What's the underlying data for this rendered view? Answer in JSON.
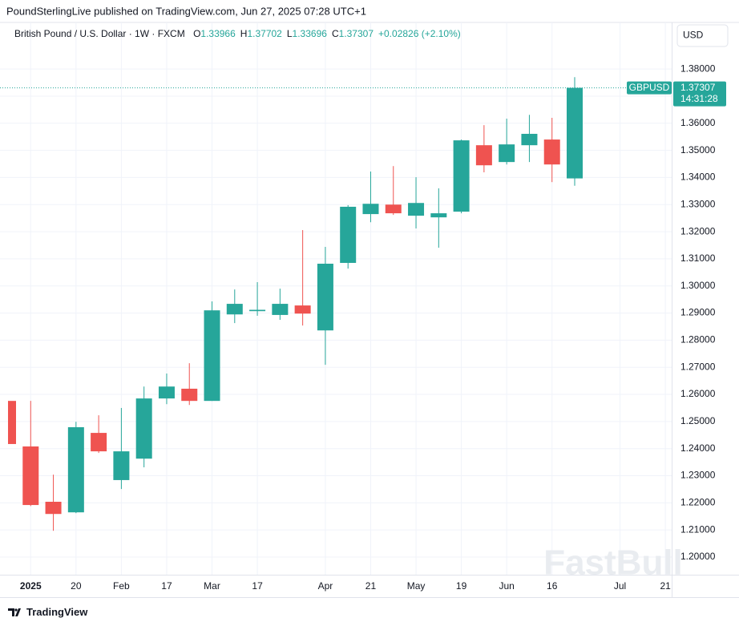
{
  "header": {
    "publisher": "PoundSterlingLive published on TradingView.com, Jun 27, 2025 07:28 UTC+1"
  },
  "footer": {
    "brand": "TradingView"
  },
  "watermark": "FastBull",
  "chart_data": {
    "type": "candlestick",
    "symbol_title": "British Pound / U.S. Dollar · 1W · FXCM",
    "ohlc_legend": [
      {
        "label": "O",
        "value": "1.33966"
      },
      {
        "label": "H",
        "value": "1.37702"
      },
      {
        "label": "L",
        "value": "1.33696"
      },
      {
        "label": "C",
        "value": "1.37307"
      }
    ],
    "change": "+0.02826 (+2.10%)",
    "currency": "USD",
    "price_tag": {
      "symbol": "GBPUSD",
      "price": "1.37307",
      "countdown": "14:31:28"
    },
    "categories": [
      null,
      "2025",
      null,
      "20",
      null,
      "Feb",
      null,
      "17",
      null,
      "Mar",
      null,
      "17",
      null,
      null,
      "Apr",
      null,
      "21",
      null,
      "May",
      null,
      "19",
      null,
      "Jun",
      null,
      "16",
      null,
      null,
      "Jul",
      null,
      "21"
    ],
    "open": [
      1.2576,
      1.2408,
      1.2204,
      1.2165,
      1.2458,
      1.2284,
      1.2363,
      1.2585,
      1.2621,
      1.2576,
      1.2895,
      1.2907,
      1.2893,
      1.2928,
      1.2836,
      1.3085,
      1.3265,
      1.33,
      1.3259,
      1.3253,
      1.3274,
      1.3519,
      1.3457,
      1.3519,
      1.354,
      1.33966,
      null,
      null,
      null,
      null
    ],
    "high": [
      1.2576,
      1.2576,
      1.2304,
      1.2499,
      1.2523,
      1.255,
      1.2629,
      1.2677,
      1.2715,
      1.2943,
      1.2987,
      1.3014,
      1.299,
      1.3206,
      1.3144,
      1.3298,
      1.3422,
      1.3442,
      1.3401,
      1.336,
      1.354,
      1.3593,
      1.3617,
      1.3631,
      1.362,
      1.37702,
      null,
      null,
      null,
      null
    ],
    "low": [
      1.2417,
      1.2188,
      1.2097,
      1.2162,
      1.2384,
      1.2251,
      1.2331,
      1.2564,
      1.2561,
      1.2576,
      1.2863,
      1.289,
      1.2875,
      1.2854,
      1.2709,
      1.3064,
      1.3235,
      1.3262,
      1.3212,
      1.3141,
      1.3268,
      1.3419,
      1.3448,
      1.3457,
      1.3383,
      1.33696,
      null,
      null,
      null,
      null
    ],
    "close": [
      1.2417,
      1.2192,
      1.2159,
      1.2479,
      1.239,
      1.239,
      1.2585,
      1.2629,
      1.2576,
      1.291,
      1.2934,
      1.2912,
      1.2934,
      1.2898,
      1.3082,
      1.3292,
      1.3303,
      1.3268,
      1.3306,
      1.3268,
      1.3537,
      1.3445,
      1.3522,
      1.3561,
      1.3448,
      1.37307,
      null,
      null,
      null,
      null
    ],
    "up_color": "#26a69a",
    "down_color": "#ef5350",
    "ylim": [
      1.1935,
      1.3892
    ],
    "yticks": [
      {
        "value": 1.2,
        "label": "1.20000"
      },
      {
        "value": 1.21,
        "label": "1.21000"
      },
      {
        "value": 1.22,
        "label": "1.22000"
      },
      {
        "value": 1.23,
        "label": "1.23000"
      },
      {
        "value": 1.24,
        "label": "1.24000"
      },
      {
        "value": 1.25,
        "label": "1.25000"
      },
      {
        "value": 1.26,
        "label": "1.26000"
      },
      {
        "value": 1.27,
        "label": "1.27000"
      },
      {
        "value": 1.28,
        "label": "1.28000"
      },
      {
        "value": 1.29,
        "label": "1.29000"
      },
      {
        "value": 1.3,
        "label": "1.30000"
      },
      {
        "value": 1.31,
        "label": "1.31000"
      },
      {
        "value": 1.32,
        "label": "1.32000"
      },
      {
        "value": 1.33,
        "label": "1.33000"
      },
      {
        "value": 1.34,
        "label": "1.34000"
      },
      {
        "value": 1.35,
        "label": "1.35000"
      },
      {
        "value": 1.36,
        "label": "1.36000"
      },
      {
        "value": 1.37,
        "label": "1.37000"
      },
      {
        "value": 1.38,
        "label": "1.38000"
      }
    ],
    "grid": true
  }
}
